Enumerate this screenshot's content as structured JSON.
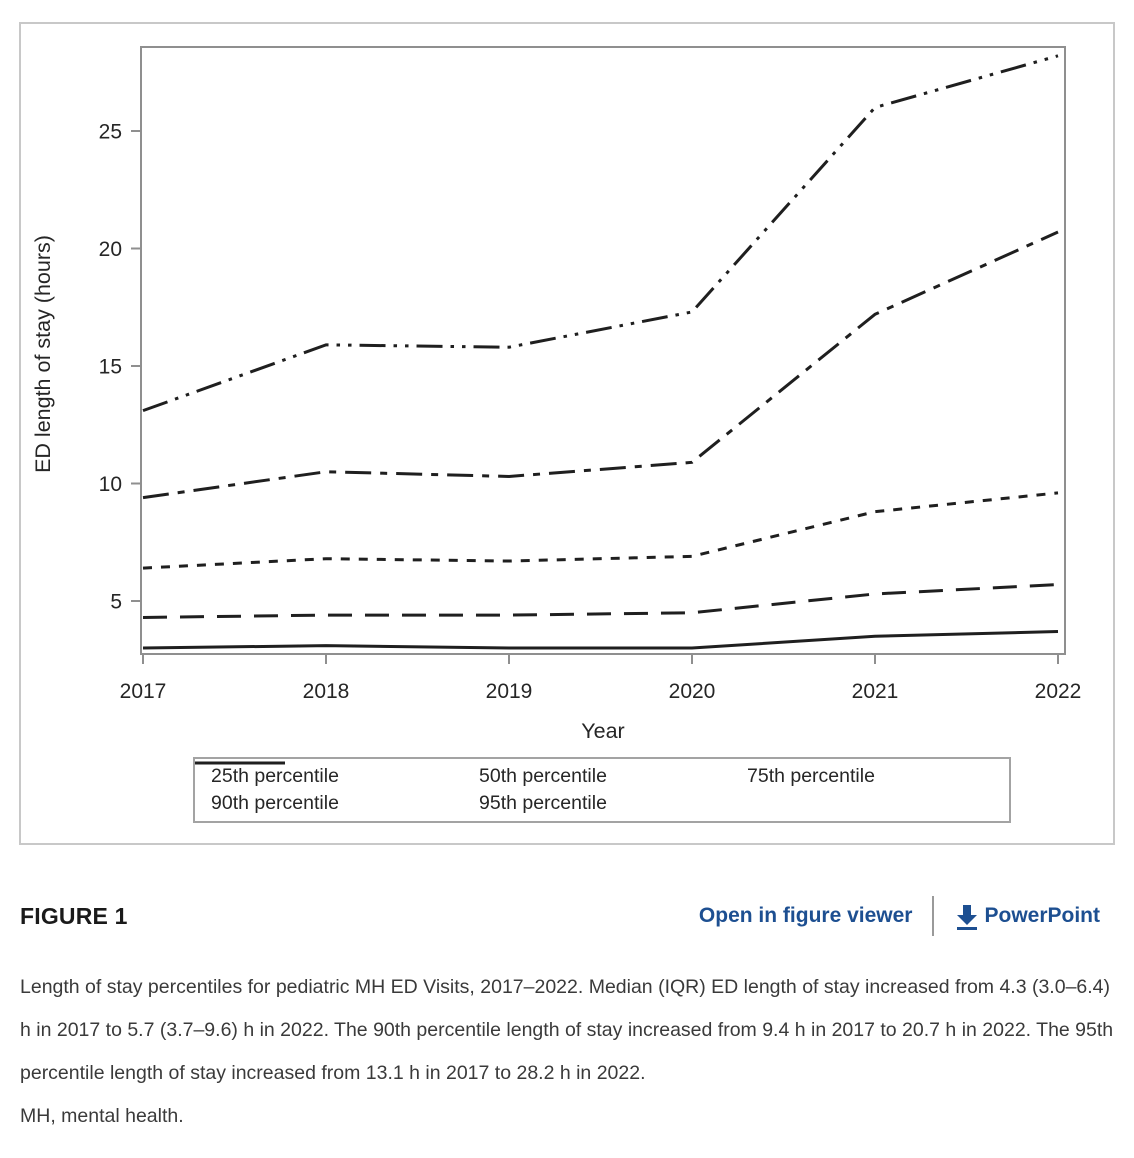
{
  "figure_header": {
    "label": "FIGURE 1",
    "open_viewer_link": "Open in figure viewer",
    "powerpoint_link": "PowerPoint",
    "download_icon": "download-arrow"
  },
  "caption": {
    "text": "Length of stay percentiles for pediatric MH ED Visits, 2017–2022. Median (IQR) ED length of stay increased from 4.3 (3.0–6.4) h in 2017 to 5.7 (3.7–9.6) h in 2022. The 90th percentile length of stay increased from 9.4 h in 2017 to 20.7 h in 2022. The 95th percentile length of stay increased from 13.1 h in 2017 to 28.2 h in 2022.",
    "abbreviation_note": "MH, mental health."
  },
  "chart_data": {
    "type": "line",
    "title": "",
    "xlabel": "Year",
    "ylabel": "ED length of stay (hours)",
    "x": [
      2017,
      2018,
      2019,
      2020,
      2021,
      2022
    ],
    "xticklabels": [
      "2017",
      "2018",
      "2019",
      "2020",
      "2021",
      "2022"
    ],
    "yticks": [
      5,
      10,
      15,
      20,
      25
    ],
    "ylim": [
      2.7,
      28.6
    ],
    "grid": false,
    "legend_position": "bottom-box",
    "series": [
      {
        "name": "25th percentile",
        "dash": "solid",
        "values": [
          3.0,
          3.1,
          3.0,
          3.0,
          3.5,
          3.7
        ]
      },
      {
        "name": "50th percentile",
        "dash": "long-dash",
        "values": [
          4.3,
          4.4,
          4.4,
          4.5,
          5.3,
          5.7
        ]
      },
      {
        "name": "75th percentile",
        "dash": "short-dash",
        "values": [
          6.4,
          6.8,
          6.7,
          6.9,
          8.8,
          9.6
        ]
      },
      {
        "name": "90th percentile",
        "dash": "dash-dot",
        "values": [
          9.4,
          10.5,
          10.3,
          10.9,
          17.2,
          20.7
        ]
      },
      {
        "name": "95th percentile",
        "dash": "dash-dot-dot",
        "values": [
          13.1,
          15.9,
          15.8,
          17.3,
          26.0,
          28.2
        ]
      }
    ]
  },
  "colors": {
    "line": "#1f1f1f",
    "axis_gray": "#8f8f8f",
    "tick_text": "#262626",
    "figure_border": "#c8c8c8",
    "legend_border": "#a3a3a3",
    "link_blue": "#1d4f91",
    "caption_text": "#3a3a3a"
  }
}
